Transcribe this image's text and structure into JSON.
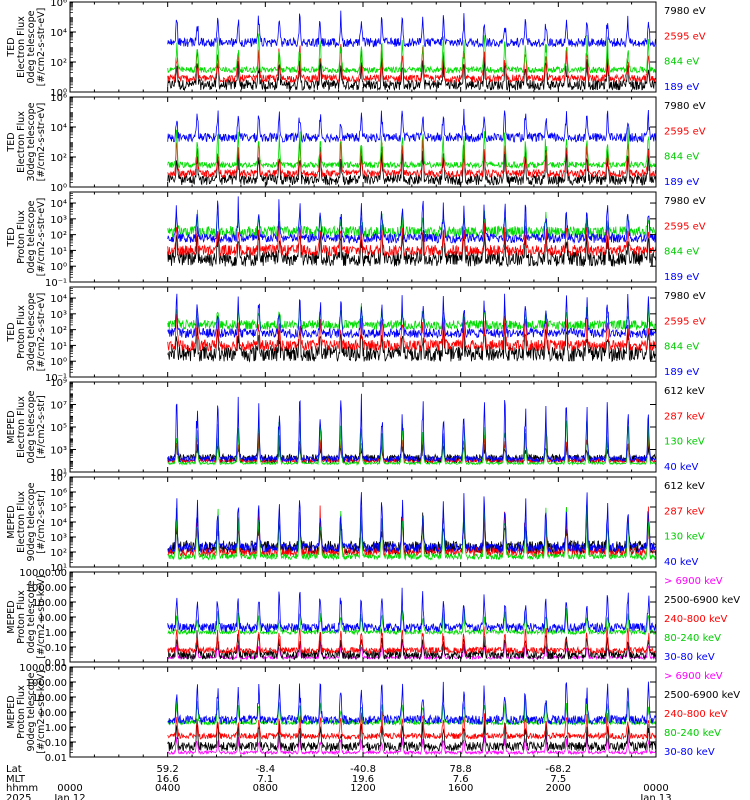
{
  "chart_data": [
    {
      "type": "line",
      "ylabel": [
        "TED",
        "Electron Flux",
        "0deg telescope",
        "[#/cm2-s-str-eV]"
      ],
      "ylog": true,
      "ylim": [
        1,
        1000000
      ],
      "yticks": [
        {
          "v": 1,
          "t": "10⁰"
        },
        {
          "v": 100,
          "t": "10²"
        },
        {
          "v": 10000,
          "t": "10⁴"
        },
        {
          "v": 1000000,
          "t": "10⁶"
        }
      ],
      "series": [
        {
          "name": "7980 eV",
          "color": "#000000",
          "base": 3,
          "peak": 300,
          "noise": 0.35
        },
        {
          "name": "2595 eV",
          "color": "#ff0000",
          "base": 8,
          "peak": 2000,
          "noise": 0.25
        },
        {
          "name": "844 eV",
          "color": "#00dd00",
          "base": 30,
          "peak": 8000,
          "noise": 0.2
        },
        {
          "name": "189 eV",
          "color": "#0000ff",
          "base": 2000,
          "peak": 200000,
          "noise": 0.3
        }
      ]
    },
    {
      "type": "line",
      "ylabel": [
        "TED",
        "Electron Flux",
        "30deg telescope",
        "[#/cm2-s-str-eV]"
      ],
      "ylog": true,
      "ylim": [
        1,
        1000000
      ],
      "yticks": [
        {
          "v": 1,
          "t": "10⁰"
        },
        {
          "v": 100,
          "t": "10²"
        },
        {
          "v": 10000,
          "t": "10⁴"
        },
        {
          "v": 1000000,
          "t": "10⁶"
        }
      ],
      "series": [
        {
          "name": "7980 eV",
          "color": "#000000",
          "base": 3,
          "peak": 300,
          "noise": 0.35
        },
        {
          "name": "2595 eV",
          "color": "#ff0000",
          "base": 8,
          "peak": 2000,
          "noise": 0.25
        },
        {
          "name": "844 eV",
          "color": "#00dd00",
          "base": 30,
          "peak": 8000,
          "noise": 0.2
        },
        {
          "name": "189 eV",
          "color": "#0000ff",
          "base": 2000,
          "peak": 200000,
          "noise": 0.3
        }
      ]
    },
    {
      "type": "line",
      "ylabel": [
        "TED",
        "Proton Flux",
        "0deg telescope",
        "[#/cm2-s-str-eV]"
      ],
      "ylog": true,
      "ylim": [
        0.1,
        50000
      ],
      "yticks": [
        {
          "v": 0.1,
          "t": "10⁻¹"
        },
        {
          "v": 1,
          "t": "10⁰"
        },
        {
          "v": 10,
          "t": "10¹"
        },
        {
          "v": 100,
          "t": "10²"
        },
        {
          "v": 1000,
          "t": "10³"
        },
        {
          "v": 10000,
          "t": "10⁴"
        }
      ],
      "series": [
        {
          "name": "7980 eV",
          "color": "#000000",
          "base": 3,
          "peak": 200,
          "noise": 0.5
        },
        {
          "name": "2595 eV",
          "color": "#ff0000",
          "base": 10,
          "peak": 800,
          "noise": 0.35
        },
        {
          "name": "844 eV",
          "color": "#00dd00",
          "base": 150,
          "peak": 3000,
          "noise": 0.35
        },
        {
          "name": "189 eV",
          "color": "#0000ff",
          "base": 60,
          "peak": 20000,
          "noise": 0.3
        }
      ]
    },
    {
      "type": "line",
      "ylabel": [
        "TED",
        "Proton Flux",
        "30deg telescope",
        "[#/cm2-s-str-eV]"
      ],
      "ylog": true,
      "ylim": [
        0.1,
        50000
      ],
      "yticks": [
        {
          "v": 0.1,
          "t": "10⁻¹"
        },
        {
          "v": 1,
          "t": "10⁰"
        },
        {
          "v": 10,
          "t": "10¹"
        },
        {
          "v": 100,
          "t": "10²"
        },
        {
          "v": 1000,
          "t": "10³"
        },
        {
          "v": 10000,
          "t": "10⁴"
        }
      ],
      "series": [
        {
          "name": "7980 eV",
          "color": "#000000",
          "base": 3,
          "peak": 200,
          "noise": 0.5
        },
        {
          "name": "2595 eV",
          "color": "#ff0000",
          "base": 10,
          "peak": 800,
          "noise": 0.35
        },
        {
          "name": "844 eV",
          "color": "#00dd00",
          "base": 200,
          "peak": 3000,
          "noise": 0.3
        },
        {
          "name": "189 eV",
          "color": "#0000ff",
          "base": 60,
          "peak": 20000,
          "noise": 0.3
        }
      ]
    },
    {
      "type": "line",
      "ylabel": [
        "MEPED",
        "Electron Flux",
        "0deg telescope",
        "[#/cm2-s-str]"
      ],
      "ylog": true,
      "ylim": [
        10,
        1000000000
      ],
      "yticks": [
        {
          "v": 10,
          "t": "10¹"
        },
        {
          "v": 1000,
          "t": "10³"
        },
        {
          "v": 100000,
          "t": "10⁵"
        },
        {
          "v": 10000000,
          "t": "10⁷"
        },
        {
          "v": 1000000000,
          "t": "10⁹"
        }
      ],
      "series": [
        {
          "name": "612 keV",
          "color": "#000000",
          "base": 150,
          "peak": 5000,
          "noise": 0.4
        },
        {
          "name": "287 keV",
          "color": "#ff0000",
          "base": 100,
          "peak": 50000,
          "noise": 0.15
        },
        {
          "name": "130 keV",
          "color": "#00dd00",
          "base": 60,
          "peak": 1000000,
          "noise": 0.1
        },
        {
          "name": "40 keV",
          "color": "#0000ff",
          "base": 150,
          "peak": 100000000,
          "noise": 0.25
        }
      ]
    },
    {
      "type": "line",
      "ylabel": [
        "MEPED",
        "Electron Flux",
        "90deg telescope",
        "[#/cm2-s-str]"
      ],
      "ylog": true,
      "ylim": [
        10,
        10000000
      ],
      "yticks": [
        {
          "v": 10,
          "t": "10¹"
        },
        {
          "v": 100,
          "t": "10²"
        },
        {
          "v": 1000,
          "t": "10³"
        },
        {
          "v": 10000,
          "t": "10⁴"
        },
        {
          "v": 100000,
          "t": "10⁵"
        },
        {
          "v": 1000000,
          "t": "10⁶"
        },
        {
          "v": 10000000,
          "t": "10⁷"
        }
      ],
      "series": [
        {
          "name": "612 keV",
          "color": "#000000",
          "base": 200,
          "peak": 30000,
          "noise": 0.45
        },
        {
          "name": "287 keV",
          "color": "#ff0000",
          "base": 100,
          "peak": 100000,
          "noise": 0.3
        },
        {
          "name": "130 keV",
          "color": "#00dd00",
          "base": 50,
          "peak": 300000,
          "noise": 0.2
        },
        {
          "name": "40 keV",
          "color": "#0000ff",
          "base": 200,
          "peak": 1000000,
          "noise": 0.3
        }
      ]
    },
    {
      "type": "line",
      "ylabel": [
        "MEPED",
        "Proton Flux",
        "0deg telescope",
        "[#/cm2-s-str-keV]"
      ],
      "ylog": true,
      "ylim": [
        0.01,
        10000
      ],
      "yticks": [
        {
          "v": 0.01,
          "t": "0.01"
        },
        {
          "v": 0.1,
          "t": "0.10"
        },
        {
          "v": 1,
          "t": "1.00"
        },
        {
          "v": 10,
          "t": "10.00"
        },
        {
          "v": 100,
          "t": "100.00"
        },
        {
          "v": 1000,
          "t": "1000.00"
        },
        {
          "v": 10000,
          "t": "10000.00"
        }
      ],
      "series": [
        {
          "name": "> 6900 keV",
          "color": "#ff00ff",
          "base": 0.02,
          "peak": 0.3,
          "noise": 0.1
        },
        {
          "name": "2500-6900 keV",
          "color": "#000000",
          "base": 0.03,
          "peak": 1,
          "noise": 0.3
        },
        {
          "name": "240-800 keV",
          "color": "#ff0000",
          "base": 0.06,
          "peak": 3,
          "noise": 0.2
        },
        {
          "name": "80-240 keV",
          "color": "#00dd00",
          "base": 1,
          "peak": 30,
          "noise": 0.15
        },
        {
          "name": "30-80 keV",
          "color": "#0000ff",
          "base": 2,
          "peak": 800,
          "noise": 0.3
        }
      ]
    },
    {
      "type": "line",
      "ylabel": [
        "MEPED",
        "Proton Flux",
        "90deg telescope",
        "[#/cm2-s-str-keV]"
      ],
      "ylog": true,
      "ylim": [
        0.01,
        10000
      ],
      "yticks": [
        {
          "v": 0.01,
          "t": "0.01"
        },
        {
          "v": 0.1,
          "t": "0.10"
        },
        {
          "v": 1,
          "t": "1.00"
        },
        {
          "v": 10,
          "t": "10.00"
        },
        {
          "v": 100,
          "t": "100.00"
        },
        {
          "v": 1000,
          "t": "1000.00"
        },
        {
          "v": 10000,
          "t": "10000.00"
        }
      ],
      "series": [
        {
          "name": "> 6900 keV",
          "color": "#ff00ff",
          "base": 0.02,
          "peak": 0.3,
          "noise": 0.1
        },
        {
          "name": "2500-6900 keV",
          "color": "#000000",
          "base": 0.05,
          "peak": 3,
          "noise": 0.3
        },
        {
          "name": "240-800 keV",
          "color": "#ff0000",
          "base": 0.25,
          "peak": 10,
          "noise": 0.2
        },
        {
          "name": "80-240 keV",
          "color": "#00dd00",
          "base": 2,
          "peak": 100,
          "noise": 0.15
        },
        {
          "name": "30-80 keV",
          "color": "#0000ff",
          "base": 3,
          "peak": 1500,
          "noise": 0.3
        }
      ]
    }
  ],
  "xaxis": {
    "row_labels": [
      "Lat",
      "MLT",
      "hhmm",
      "2025"
    ],
    "ticks": [
      {
        "hours": 0,
        "lat": "",
        "mlt": "",
        "hhmm": "0000",
        "date": "Jan 12"
      },
      {
        "hours": 4,
        "lat": "59.2",
        "mlt": "16.6",
        "hhmm": "0400",
        "date": ""
      },
      {
        "hours": 8,
        "lat": "-8.4",
        "mlt": "7.1",
        "hhmm": "0800",
        "date": ""
      },
      {
        "hours": 12,
        "lat": "-40.8",
        "mlt": "19.6",
        "hhmm": "1200",
        "date": ""
      },
      {
        "hours": 16,
        "lat": "78.8",
        "mlt": "7.6",
        "hhmm": "1600",
        "date": ""
      },
      {
        "hours": 20,
        "lat": "-68.2",
        "mlt": "7.5",
        "hhmm": "2000",
        "date": ""
      },
      {
        "hours": 24,
        "lat": "",
        "mlt": "",
        "hhmm": "0000",
        "date": "Jan 13"
      }
    ],
    "data_start_hours": 4.0,
    "range_hours": [
      0,
      24
    ],
    "orbit_period_hours": 1.68
  }
}
